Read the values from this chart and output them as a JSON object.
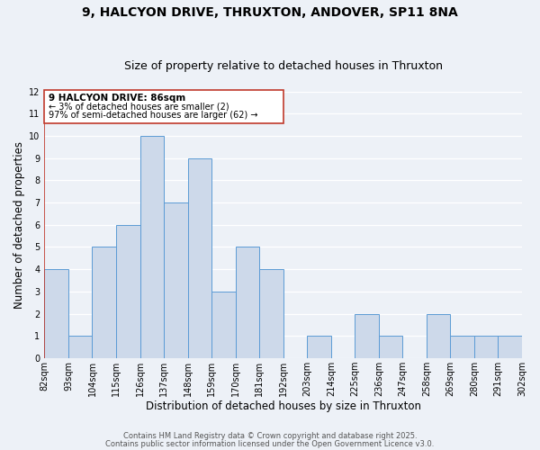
{
  "title": "9, HALCYON DRIVE, THRUXTON, ANDOVER, SP11 8NA",
  "subtitle": "Size of property relative to detached houses in Thruxton",
  "xlabel": "Distribution of detached houses by size in Thruxton",
  "ylabel": "Number of detached properties",
  "bar_color": "#cdd9ea",
  "bar_edge_color": "#5b9bd5",
  "vline_color": "#c0392b",
  "bin_edges": [
    82,
    93,
    104,
    115,
    126,
    137,
    148,
    159,
    170,
    181,
    192,
    203,
    214,
    225,
    236,
    247,
    258,
    269,
    280,
    291,
    302
  ],
  "bin_labels": [
    "82sqm",
    "93sqm",
    "104sqm",
    "115sqm",
    "126sqm",
    "137sqm",
    "148sqm",
    "159sqm",
    "170sqm",
    "181sqm",
    "192sqm",
    "203sqm",
    "214sqm",
    "225sqm",
    "236sqm",
    "247sqm",
    "258sqm",
    "269sqm",
    "280sqm",
    "291sqm",
    "302sqm"
  ],
  "counts": [
    4,
    1,
    5,
    6,
    10,
    7,
    9,
    3,
    5,
    4,
    0,
    1,
    0,
    2,
    1,
    0,
    2,
    1,
    1,
    0,
    1
  ],
  "ylim": [
    0,
    12
  ],
  "yticks": [
    0,
    1,
    2,
    3,
    4,
    5,
    6,
    7,
    8,
    9,
    10,
    11,
    12
  ],
  "annotation_title": "9 HALCYON DRIVE: 86sqm",
  "annotation_line1": "← 3% of detached houses are smaller (2)",
  "annotation_line2": "97% of semi-detached houses are larger (62) →",
  "annotation_box_color": "#ffffff",
  "annotation_box_edge": "#c0392b",
  "footer1": "Contains HM Land Registry data © Crown copyright and database right 2025.",
  "footer2": "Contains public sector information licensed under the Open Government Licence v3.0.",
  "background_color": "#edf1f7",
  "grid_color": "#ffffff",
  "title_fontsize": 10,
  "subtitle_fontsize": 9,
  "axis_label_fontsize": 8.5,
  "tick_fontsize": 7,
  "footer_fontsize": 6,
  "anno_title_fontsize": 7.5,
  "anno_line_fontsize": 7
}
